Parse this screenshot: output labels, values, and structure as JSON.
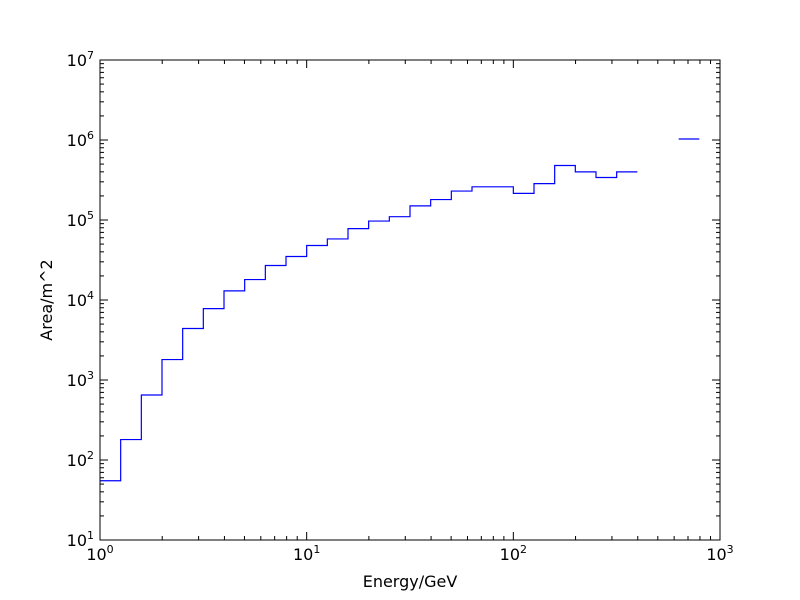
{
  "chart_data": {
    "type": "line",
    "drawstyle": "steps",
    "title": "",
    "xlabel": "Energy/GeV",
    "ylabel": "Area/m^2",
    "xscale": "log",
    "yscale": "log",
    "xlim": [
      1,
      1000
    ],
    "ylim": [
      10,
      10000000
    ],
    "x_ticks": [
      {
        "base": "10",
        "exp": "0",
        "value": 1
      },
      {
        "base": "10",
        "exp": "1",
        "value": 10
      },
      {
        "base": "10",
        "exp": "2",
        "value": 100
      },
      {
        "base": "10",
        "exp": "3",
        "value": 1000
      }
    ],
    "y_ticks": [
      {
        "base": "10",
        "exp": "1",
        "value": 10
      },
      {
        "base": "10",
        "exp": "2",
        "value": 100
      },
      {
        "base": "10",
        "exp": "3",
        "value": 1000
      },
      {
        "base": "10",
        "exp": "4",
        "value": 10000
      },
      {
        "base": "10",
        "exp": "5",
        "value": 100000
      },
      {
        "base": "10",
        "exp": "6",
        "value": 1000000
      },
      {
        "base": "10",
        "exp": "7",
        "value": 10000000
      }
    ],
    "grid": false,
    "legend": "none",
    "series": [
      {
        "color": "#0000ff",
        "bins": [
          {
            "x_low": 1.0,
            "x_high": 1.259,
            "y": 55
          },
          {
            "x_low": 1.259,
            "x_high": 1.585,
            "y": 180
          },
          {
            "x_low": 1.585,
            "x_high": 1.995,
            "y": 650
          },
          {
            "x_low": 1.995,
            "x_high": 2.512,
            "y": 1800
          },
          {
            "x_low": 2.512,
            "x_high": 3.162,
            "y": 4400
          },
          {
            "x_low": 3.162,
            "x_high": 3.981,
            "y": 7800
          },
          {
            "x_low": 3.981,
            "x_high": 5.012,
            "y": 13000
          },
          {
            "x_low": 5.012,
            "x_high": 6.31,
            "y": 18000
          },
          {
            "x_low": 6.31,
            "x_high": 7.943,
            "y": 27000
          },
          {
            "x_low": 7.943,
            "x_high": 10.0,
            "y": 35000
          },
          {
            "x_low": 10.0,
            "x_high": 12.59,
            "y": 48000
          },
          {
            "x_low": 12.59,
            "x_high": 15.85,
            "y": 58000
          },
          {
            "x_low": 15.85,
            "x_high": 19.95,
            "y": 78000
          },
          {
            "x_low": 19.95,
            "x_high": 25.12,
            "y": 97000
          },
          {
            "x_low": 25.12,
            "x_high": 31.62,
            "y": 110000
          },
          {
            "x_low": 31.62,
            "x_high": 39.81,
            "y": 150000
          },
          {
            "x_low": 39.81,
            "x_high": 50.12,
            "y": 180000
          },
          {
            "x_low": 50.12,
            "x_high": 63.1,
            "y": 230000
          },
          {
            "x_low": 63.1,
            "x_high": 79.43,
            "y": 260000
          },
          {
            "x_low": 79.43,
            "x_high": 100.0,
            "y": 260000
          },
          {
            "x_low": 100.0,
            "x_high": 125.9,
            "y": 215000
          },
          {
            "x_low": 125.9,
            "x_high": 158.5,
            "y": 285000
          },
          {
            "x_low": 158.5,
            "x_high": 199.5,
            "y": 480000
          },
          {
            "x_low": 199.5,
            "x_high": 251.2,
            "y": 400000
          },
          {
            "x_low": 251.2,
            "x_high": 316.2,
            "y": 340000
          },
          {
            "x_low": 316.2,
            "x_high": 398.1,
            "y": 400000
          },
          {
            "x_low": 630.9,
            "x_high": 794.3,
            "y": 1030000
          }
        ]
      }
    ]
  }
}
